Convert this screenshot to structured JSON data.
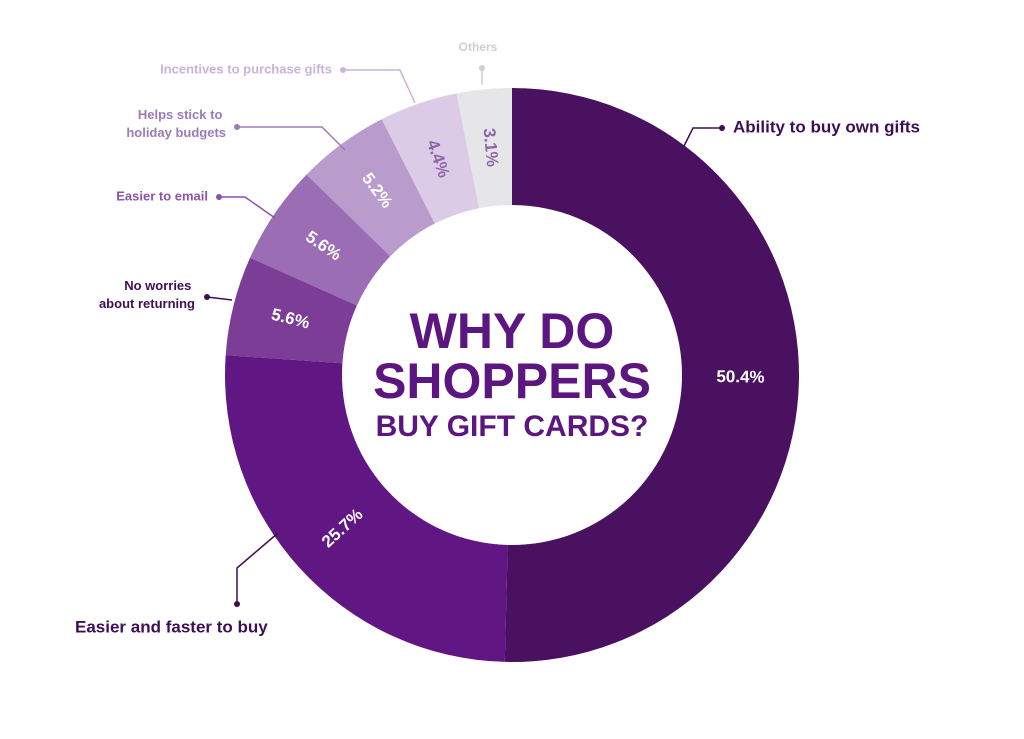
{
  "chart_data": {
    "type": "donut",
    "title": [
      "WHY DO",
      "SHOPPERS",
      "BUY GIFT CARDS?"
    ],
    "categories": [
      "Ability to buy own gifts",
      "Easier and faster to buy",
      "No worries about returning",
      "Easier to email",
      "Helps stick to holiday budgets",
      "Incentives to purchase gifts",
      "Others"
    ],
    "values": [
      50.4,
      25.7,
      5.6,
      5.6,
      5.2,
      4.4,
      3.1
    ],
    "value_labels": [
      "50.4%",
      "25.7%",
      "5.6%",
      "5.6%",
      "5.2%",
      "4.4%",
      "3.1%"
    ],
    "colors": [
      "#4a1160",
      "#611783",
      "#7b3d96",
      "#9a6db4",
      "#b99ccc",
      "#dccbe6",
      "#e6e6e8"
    ]
  }
}
